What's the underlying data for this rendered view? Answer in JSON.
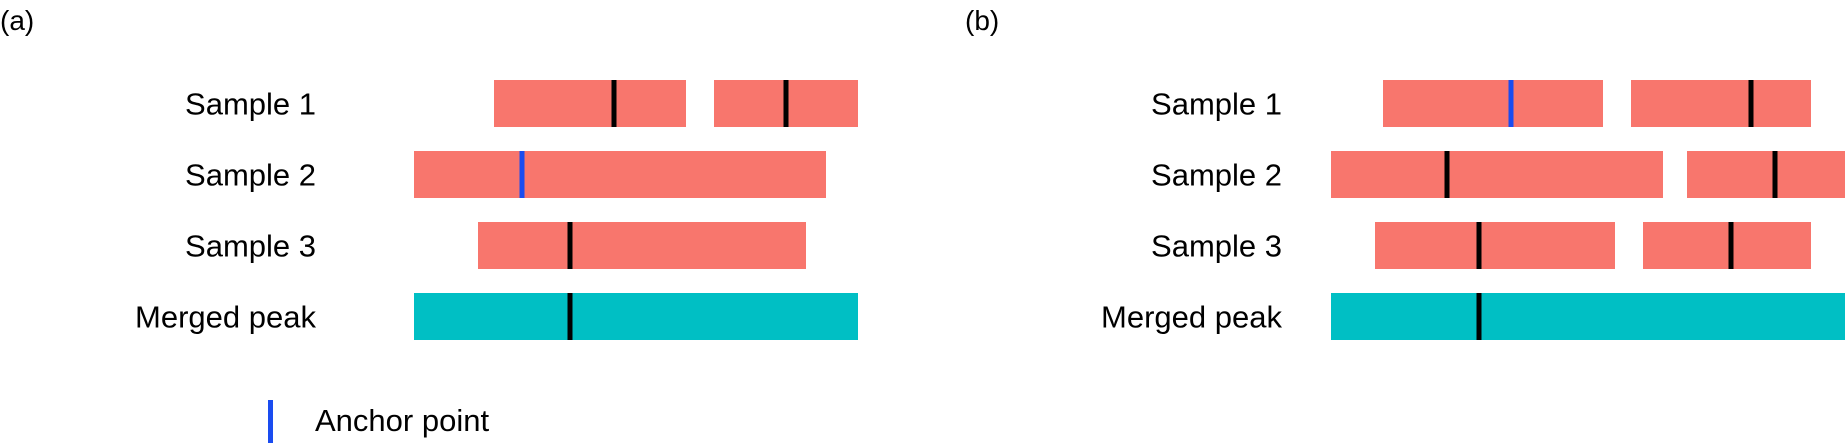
{
  "colors": {
    "sample_peak": "#F8766D",
    "merged_peak": "#00BFC4",
    "summit": "#000000",
    "anchor": "#1A4CF0"
  },
  "legend": {
    "label": "Anchor point"
  },
  "panels": [
    {
      "label": "(a)",
      "rows": [
        {
          "label": "Sample 1",
          "kind": "sample",
          "intervals": [
            {
              "start": 1.6,
              "end": 4.0,
              "marker": 3.1,
              "marker_type": "summit"
            },
            {
              "start": 4.35,
              "end": 6.15,
              "marker": 5.25,
              "marker_type": "summit"
            }
          ]
        },
        {
          "label": "Sample 2",
          "kind": "sample",
          "intervals": [
            {
              "start": 0.6,
              "end": 5.75,
              "marker": 1.95,
              "marker_type": "anchor"
            }
          ]
        },
        {
          "label": "Sample 3",
          "kind": "sample",
          "intervals": [
            {
              "start": 1.4,
              "end": 5.5,
              "marker": 2.55,
              "marker_type": "summit"
            }
          ]
        },
        {
          "label": "Merged peak",
          "kind": "merged",
          "intervals": [
            {
              "start": 0.6,
              "end": 6.15,
              "marker": 2.55,
              "marker_type": "summit"
            }
          ]
        }
      ]
    },
    {
      "label": "(b)",
      "rows": [
        {
          "label": "Sample 1",
          "kind": "sample",
          "intervals": [
            {
              "start": 0.65,
              "end": 3.4,
              "marker": 2.25,
              "marker_type": "anchor"
            },
            {
              "start": 3.75,
              "end": 6.0,
              "marker": 5.25,
              "marker_type": "summit"
            }
          ]
        },
        {
          "label": "Sample 2",
          "kind": "sample",
          "intervals": [
            {
              "start": 0.0,
              "end": 4.15,
              "marker": 1.45,
              "marker_type": "summit"
            },
            {
              "start": 4.45,
              "end": 6.6,
              "marker": 5.55,
              "marker_type": "summit"
            }
          ]
        },
        {
          "label": "Sample 3",
          "kind": "sample",
          "intervals": [
            {
              "start": 0.55,
              "end": 3.55,
              "marker": 1.85,
              "marker_type": "summit"
            },
            {
              "start": 3.9,
              "end": 6.0,
              "marker": 5.0,
              "marker_type": "summit"
            }
          ]
        },
        {
          "label": "Merged peak",
          "kind": "merged",
          "intervals": [
            {
              "start": 0.0,
              "end": 6.6,
              "marker": 1.85,
              "marker_type": "summit"
            }
          ]
        }
      ]
    }
  ]
}
